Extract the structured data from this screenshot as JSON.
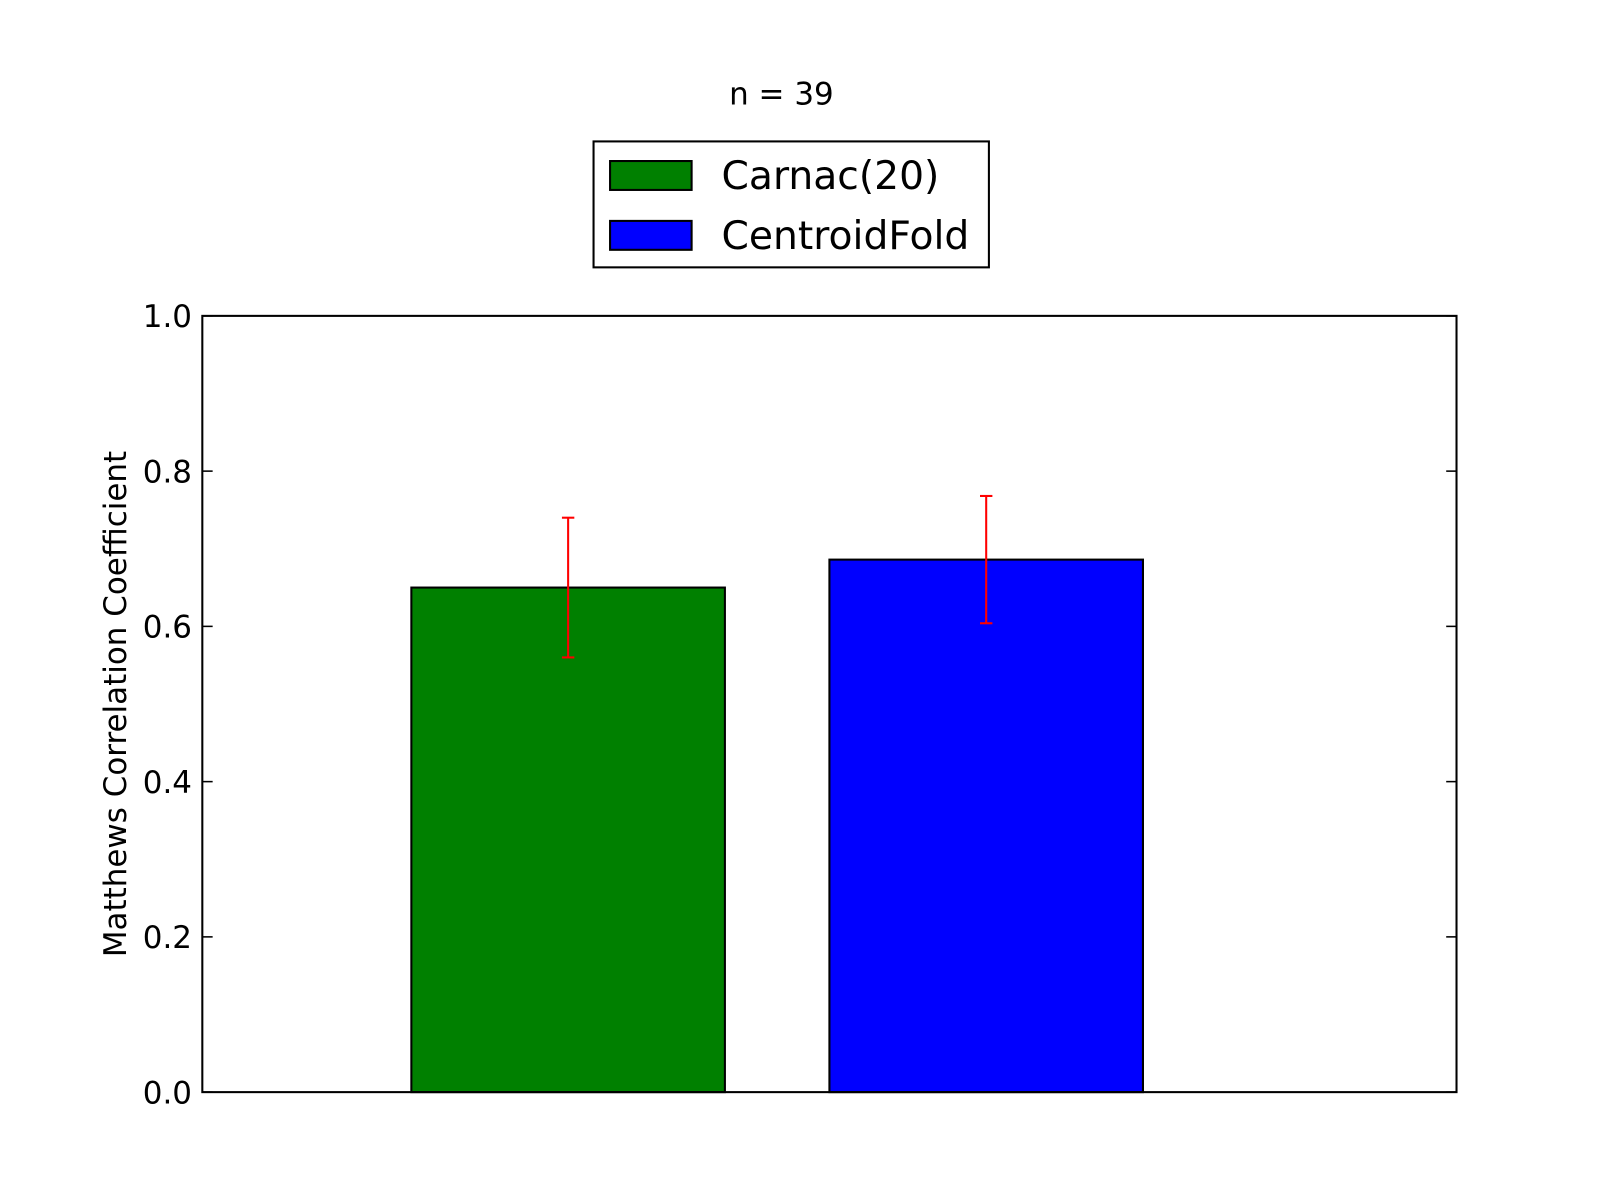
{
  "chart_data": {
    "type": "bar",
    "title": "n = 39",
    "ylabel": "Matthews Correlation Coefficient",
    "series": [
      {
        "name": "Carnac(20)",
        "color": "#008000",
        "values": [
          0.65
        ],
        "errors": [
          0.09
        ],
        "error_color": "#ff0000"
      },
      {
        "name": "CentroidFold",
        "color": "#0000ff",
        "values": [
          0.686
        ],
        "errors": [
          0.082
        ],
        "error_color": "#ff0000"
      }
    ],
    "ylim": [
      0,
      1
    ],
    "yticks": [
      {
        "value": 0,
        "label": "0.0"
      },
      0.2,
      0.4,
      0.6,
      0.8,
      {
        "value": 1,
        "label": "1.0"
      }
    ],
    "grid": false,
    "legend": "upper center"
  }
}
